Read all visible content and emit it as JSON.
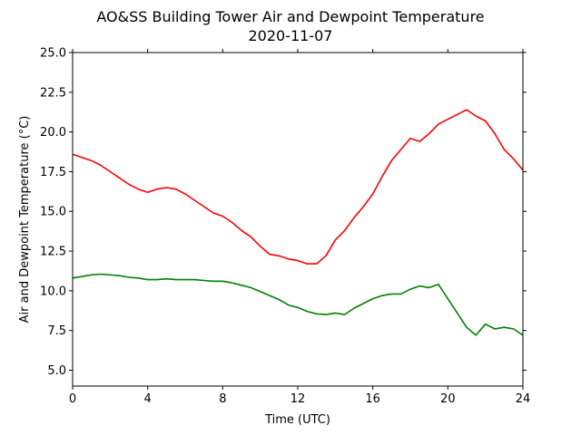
{
  "chart_data": {
    "type": "line",
    "title": "AO&SS Building Tower Air and Dewpoint Temperature",
    "subtitle": "2020-11-07",
    "xlabel": "Time (UTC)",
    "ylabel": "Air and Dewpoint Temperature (°C)",
    "xlim": [
      0,
      24
    ],
    "ylim": [
      4.0,
      25.0
    ],
    "x_ticks": [
      0,
      4,
      8,
      12,
      16,
      20,
      24
    ],
    "x_tick_labels": [
      "0",
      "4",
      "8",
      "12",
      "16",
      "20",
      "24"
    ],
    "y_ticks": [
      5.0,
      7.5,
      10.0,
      12.5,
      15.0,
      17.5,
      20.0,
      22.5,
      25.0
    ],
    "y_tick_labels": [
      "5.0",
      "7.5",
      "10.0",
      "12.5",
      "15.0",
      "17.5",
      "20.0",
      "22.5",
      "25.0"
    ],
    "grid": false,
    "legend": "none",
    "series": [
      {
        "color": "#ff0000",
        "x": [
          0,
          0.5,
          1,
          1.5,
          2,
          2.5,
          3,
          3.5,
          4,
          4.5,
          5,
          5.5,
          6,
          6.5,
          7,
          7.5,
          8,
          8.5,
          9,
          9.5,
          10,
          10.5,
          11,
          11.5,
          12,
          12.5,
          13,
          13.5,
          14,
          14.5,
          15,
          15.5,
          16,
          16.5,
          17,
          17.5,
          18,
          18.5,
          19,
          19.5,
          20,
          20.5,
          21,
          21.5,
          22,
          22.5,
          23,
          23.5,
          24
        ],
        "y": [
          18.6,
          18.4,
          18.2,
          17.9,
          17.5,
          17.1,
          16.7,
          16.4,
          16.2,
          16.4,
          16.5,
          16.4,
          16.1,
          15.7,
          15.3,
          14.9,
          14.7,
          14.3,
          13.8,
          13.4,
          12.8,
          12.3,
          12.2,
          12.0,
          11.9,
          11.7,
          11.7,
          12.2,
          13.2,
          13.8,
          14.6,
          15.3,
          16.1,
          17.2,
          18.2,
          18.9,
          19.6,
          19.4,
          19.9,
          20.5,
          20.8,
          21.1,
          21.4,
          21.0,
          20.7,
          19.9,
          18.9,
          18.3,
          17.6
        ]
      },
      {
        "color": "#008000",
        "x": [
          0,
          0.5,
          1,
          1.5,
          2,
          2.5,
          3,
          3.5,
          4,
          4.5,
          5,
          5.5,
          6,
          6.5,
          7,
          7.5,
          8,
          8.5,
          9,
          9.5,
          10,
          10.5,
          11,
          11.5,
          12,
          12.5,
          13,
          13.5,
          14,
          14.5,
          15,
          15.5,
          16,
          16.5,
          17,
          17.5,
          18,
          18.5,
          19,
          19.5,
          20,
          20.5,
          21,
          21.5,
          22,
          22.5,
          23,
          23.5,
          24
        ],
        "y": [
          10.8,
          10.9,
          11.0,
          11.05,
          11.0,
          10.95,
          10.85,
          10.8,
          10.7,
          10.7,
          10.75,
          10.7,
          10.7,
          10.7,
          10.65,
          10.6,
          10.6,
          10.5,
          10.35,
          10.2,
          9.95,
          9.7,
          9.45,
          9.1,
          8.95,
          8.7,
          8.55,
          8.5,
          8.6,
          8.5,
          8.9,
          9.2,
          9.5,
          9.7,
          9.8,
          9.8,
          10.1,
          10.3,
          10.2,
          10.4,
          9.5,
          8.6,
          7.7,
          7.2,
          7.9,
          7.6,
          7.7,
          7.6,
          7.2
        ]
      }
    ]
  }
}
